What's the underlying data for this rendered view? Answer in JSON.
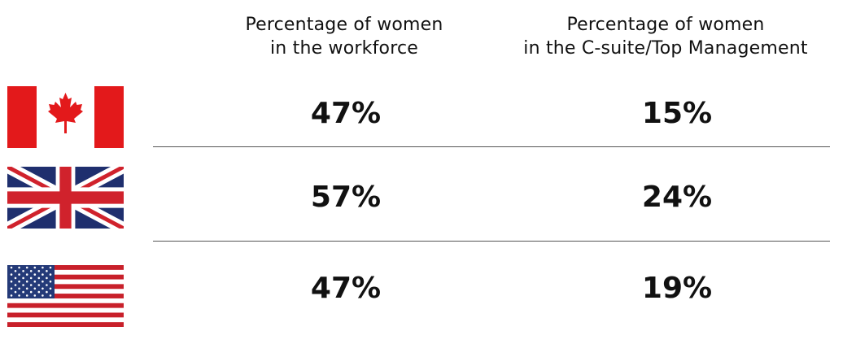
{
  "headers": {
    "workforce": [
      "Percentage of women",
      "in the workforce"
    ],
    "csuite": [
      "Percentage of women",
      "in the C-suite/Top Management"
    ]
  },
  "rows": [
    {
      "flag": "canada-flag",
      "workforce": "47%",
      "csuite": "15%"
    },
    {
      "flag": "uk-flag",
      "workforce": "57%",
      "csuite": "24%"
    },
    {
      "flag": "usa-flag",
      "workforce": "47%",
      "csuite": "19%"
    }
  ],
  "colors": {
    "canada_red": "#e3191b",
    "uk_blue": "#1f2f6e",
    "uk_red": "#d0222c",
    "us_red": "#c8202a",
    "us_blue": "#243a78",
    "divider": "#555555"
  }
}
